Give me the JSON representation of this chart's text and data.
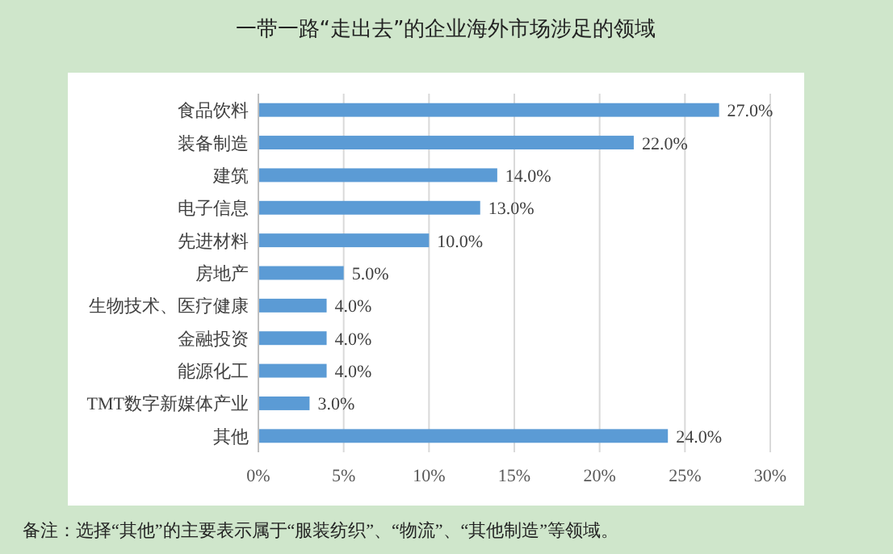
{
  "chart_data": {
    "type": "bar",
    "orientation": "horizontal",
    "title": "一带一路“走出去”的企业海外市场涉足的领域",
    "categories": [
      "食品饮料",
      "装备制造",
      "建筑",
      "电子信息",
      "先进材料",
      "房地产",
      "生物技术、医疗健康",
      "金融投资",
      "能源化工",
      "TMT数字新媒体产业",
      "其他"
    ],
    "values": [
      27,
      22,
      14,
      13,
      10,
      5,
      4,
      4,
      4,
      3,
      24
    ],
    "value_labels": [
      "27.0%",
      "22.0%",
      "14.0%",
      "13.0%",
      "10.0%",
      "5.0%",
      "4.0%",
      "4.0%",
      "4.0%",
      "3.0%",
      "24.0%"
    ],
    "color": "#5b9bd5",
    "xlim": [
      0,
      30
    ],
    "xticks": [
      {
        "value": 0,
        "label": "0%"
      },
      {
        "value": 5,
        "label": "5%"
      },
      {
        "value": 10,
        "label": "10%"
      },
      {
        "value": 15,
        "label": "15%"
      },
      {
        "value": 20,
        "label": "20%"
      },
      {
        "value": 25,
        "label": "25%"
      },
      {
        "value": 30,
        "label": "30%"
      }
    ],
    "grid": "x",
    "annotations": [
      "备注：选择“其他”的主要表示属于“服装纺织”、“物流”、“其他制造”等领域。"
    ]
  }
}
